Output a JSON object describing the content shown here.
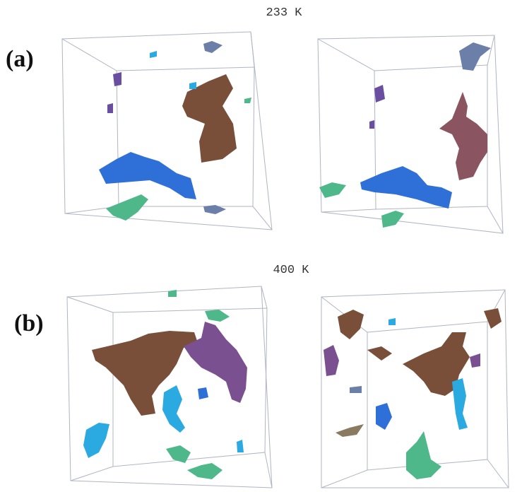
{
  "panels": [
    {
      "label": "(a)",
      "temperature": "233 K"
    },
    {
      "label": "(b)",
      "temperature": "400 K"
    }
  ]
}
